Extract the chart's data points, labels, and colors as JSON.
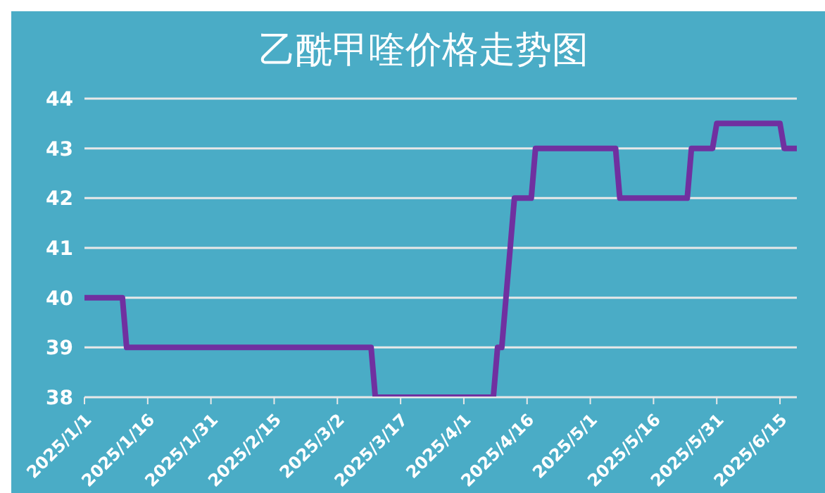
{
  "chart_data": {
    "type": "line",
    "title": "乙酰甲喹价格走势图",
    "x": [
      "2025-01-01",
      "2025-01-10",
      "2025-01-11",
      "2025-03-10",
      "2025-03-11",
      "2025-04-08",
      "2025-04-09",
      "2025-04-10",
      "2025-04-12",
      "2025-04-13",
      "2025-04-17",
      "2025-04-18",
      "2025-05-07",
      "2025-05-08",
      "2025-05-24",
      "2025-05-25",
      "2025-05-30",
      "2025-05-31",
      "2025-06-15",
      "2025-06-16",
      "2025-06-19"
    ],
    "series": [
      {
        "color": "#7030a0",
        "values": [
          40,
          40,
          39,
          39,
          38,
          38,
          39,
          39,
          41,
          42,
          42,
          43,
          43,
          42,
          42,
          43,
          43,
          43.5,
          43.5,
          43,
          43
        ]
      }
    ],
    "xlim": [
      "2025-01-01",
      "2025-06-19"
    ],
    "xticks": [
      {
        "value": "2025-01-01",
        "label": "2025/1/1"
      },
      {
        "value": "2025-01-16",
        "label": "2025/1/16"
      },
      {
        "value": "2025-01-31",
        "label": "2025/1/31"
      },
      {
        "value": "2025-02-15",
        "label": "2025/2/15"
      },
      {
        "value": "2025-03-02",
        "label": "2025/3/2"
      },
      {
        "value": "2025-03-17",
        "label": "2025/3/17"
      },
      {
        "value": "2025-04-01",
        "label": "2025/4/1"
      },
      {
        "value": "2025-04-16",
        "label": "2025/4/16"
      },
      {
        "value": "2025-05-01",
        "label": "2025/5/1"
      },
      {
        "value": "2025-05-16",
        "label": "2025/5/16"
      },
      {
        "value": "2025-05-31",
        "label": "2025/5/31"
      },
      {
        "value": "2025-06-15",
        "label": "2025/6/15"
      }
    ],
    "ylim": [
      38,
      44
    ],
    "yticks": [
      38,
      39,
      40,
      41,
      42,
      43,
      44
    ],
    "grid": "y",
    "legend": false,
    "marker": "none",
    "line_style": "solid"
  }
}
